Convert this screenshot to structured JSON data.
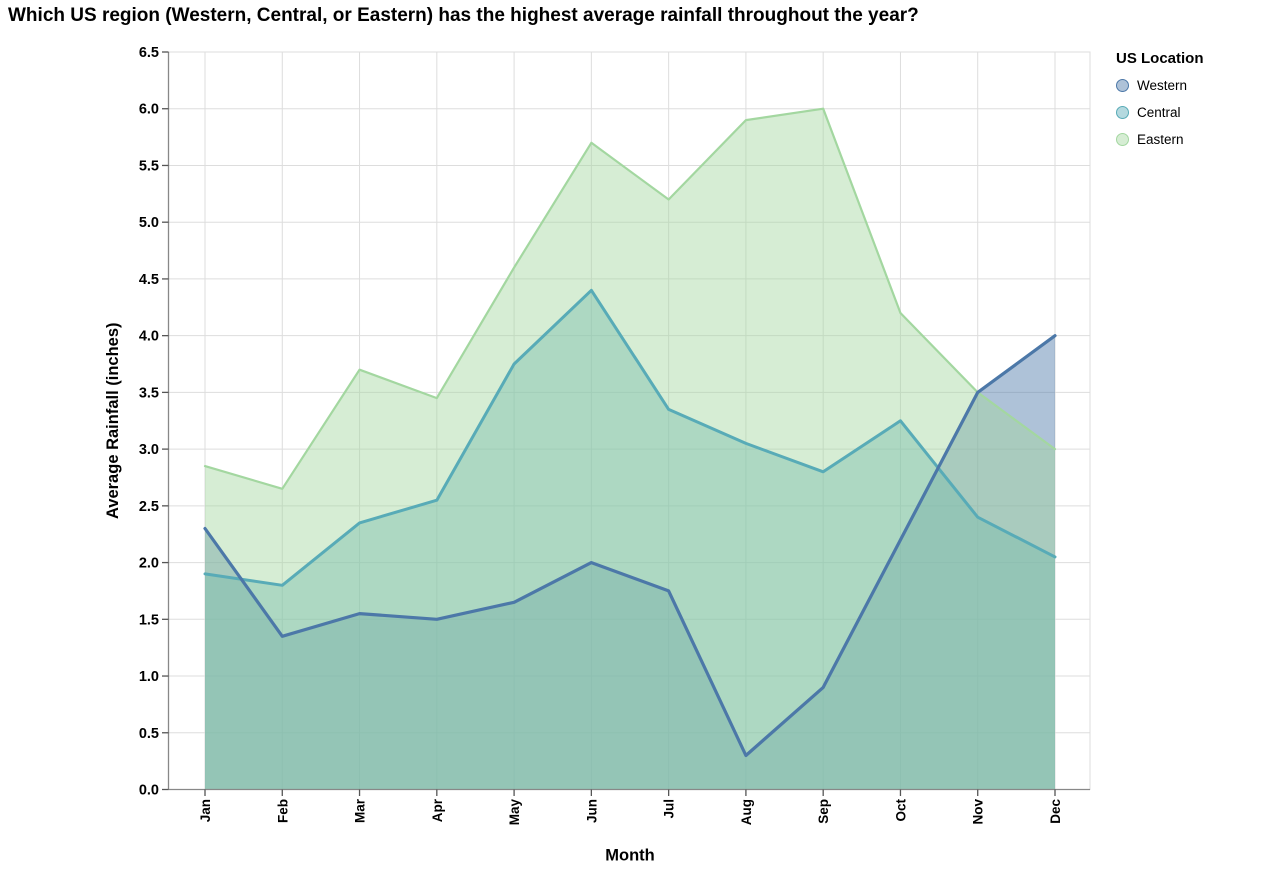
{
  "title": "Which US region (Western, Central, or Eastern) has the highest average rainfall throughout the year?",
  "legend": {
    "title": "US Location",
    "items": [
      "Western",
      "Central",
      "Eastern"
    ]
  },
  "chart_data": {
    "type": "area",
    "title": "Which US region (Western, Central, or Eastern) has the highest average rainfall throughout the year?",
    "xlabel": "Month",
    "ylabel": "Average Rainfall (inches)",
    "x": [
      "Jan",
      "Feb",
      "Mar",
      "Apr",
      "May",
      "Jun",
      "Jul",
      "Aug",
      "Sep",
      "Oct",
      "Nov",
      "Dec"
    ],
    "ylim": [
      0,
      6.5
    ],
    "ytick_step": 0.5,
    "ytick_labels": [
      "0.0",
      "0.5",
      "1.0",
      "1.5",
      "2.0",
      "2.5",
      "3.0",
      "3.5",
      "4.0",
      "4.5",
      "5.0",
      "5.5",
      "6.0",
      "6.5"
    ],
    "grid": true,
    "legend_title": "US Location",
    "legend_position": "top-right",
    "series": [
      {
        "name": "Western",
        "color": "#4c78a8",
        "fill_opacity": 0.45,
        "line_width": 3.2,
        "values": [
          2.3,
          1.35,
          1.55,
          1.5,
          1.65,
          2.0,
          1.75,
          0.3,
          0.9,
          2.2,
          3.5,
          4.0
        ]
      },
      {
        "name": "Central",
        "color": "#58abb7",
        "fill_opacity": 0.45,
        "line_width": 3.0,
        "values": [
          1.9,
          1.8,
          2.35,
          2.55,
          3.75,
          4.4,
          3.35,
          3.05,
          2.8,
          3.25,
          2.4,
          2.05
        ]
      },
      {
        "name": "Eastern",
        "color": "#a3d7a0",
        "fill_opacity": 0.45,
        "line_width": 2.2,
        "values": [
          2.85,
          2.65,
          3.7,
          3.45,
          4.6,
          5.7,
          5.2,
          5.9,
          6.0,
          4.2,
          3.5,
          3.0
        ]
      }
    ],
    "style": {
      "grid_color": "#dddddd",
      "border_color": "#dddddd",
      "axis_domain_color": "#888888",
      "tick_color": "#555555",
      "text_color": "#000000"
    }
  }
}
